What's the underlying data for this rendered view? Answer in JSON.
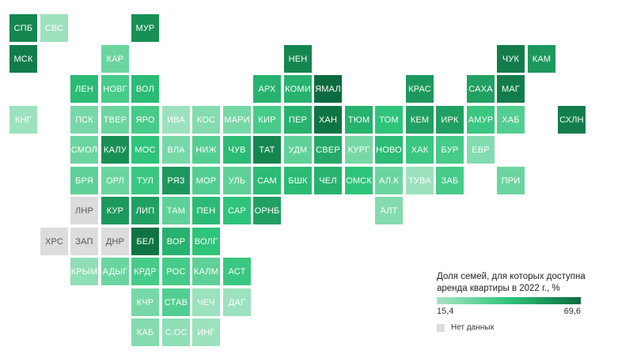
{
  "chart_data": {
    "type": "heatmap",
    "legend": {
      "title": "Доля семей, для которых доступна аренда квартиры в 2022 г., %",
      "min_label": "15,4",
      "max_label": "69,6",
      "nodata_label": "Нет данных",
      "color_min": "#a8e5c5",
      "color_mid": "#2ec47a",
      "color_max": "#0b6b3e",
      "nodata_color": "#dcdcdc"
    },
    "tiles": [
      {
        "label": "СПБ",
        "row": 0,
        "col": 0,
        "level": 0.85
      },
      {
        "label": "СВС",
        "row": 0,
        "col": 1,
        "level": 0.05
      },
      {
        "label": "МУР",
        "row": 0,
        "col": 4,
        "level": 0.8
      },
      {
        "label": "МСК",
        "row": 1,
        "col": 0,
        "level": 0.9
      },
      {
        "label": "КАР",
        "row": 1,
        "col": 3,
        "level": 0.25
      },
      {
        "label": "НЕН",
        "row": 1,
        "col": 9,
        "level": 0.85
      },
      {
        "label": "ЧУК",
        "row": 1,
        "col": 16,
        "level": 0.9
      },
      {
        "label": "КАМ",
        "row": 1,
        "col": 17,
        "level": 0.75
      },
      {
        "label": "ЛЕН",
        "row": 2,
        "col": 2,
        "level": 0.55
      },
      {
        "label": "НОВГ",
        "row": 2,
        "col": 3,
        "level": 0.4
      },
      {
        "label": "ВОЛ",
        "row": 2,
        "col": 4,
        "level": 0.55
      },
      {
        "label": "АРХ",
        "row": 2,
        "col": 8,
        "level": 0.6
      },
      {
        "label": "КОМИ",
        "row": 2,
        "col": 9,
        "level": 0.6
      },
      {
        "label": "ЯМАЛ",
        "row": 2,
        "col": 10,
        "level": 1.0
      },
      {
        "label": "КРАС",
        "row": 2,
        "col": 13,
        "level": 0.75
      },
      {
        "label": "САХА",
        "row": 2,
        "col": 15,
        "level": 0.7
      },
      {
        "label": "МАГ",
        "row": 2,
        "col": 16,
        "level": 0.9
      },
      {
        "label": "КНГ",
        "row": 3,
        "col": 0,
        "level": 0.05
      },
      {
        "label": "ПСК",
        "row": 3,
        "col": 2,
        "level": 0.2
      },
      {
        "label": "ТВЕР",
        "row": 3,
        "col": 3,
        "level": 0.25
      },
      {
        "label": "ЯРО",
        "row": 3,
        "col": 4,
        "level": 0.4
      },
      {
        "label": "ИВА",
        "row": 3,
        "col": 5,
        "level": 0.05
      },
      {
        "label": "КОС",
        "row": 3,
        "col": 6,
        "level": 0.15
      },
      {
        "label": "МАРИ",
        "row": 3,
        "col": 7,
        "level": 0.2
      },
      {
        "label": "КИР",
        "row": 3,
        "col": 8,
        "level": 0.4
      },
      {
        "label": "ПЕР",
        "row": 3,
        "col": 9,
        "level": 0.6
      },
      {
        "label": "ХАН",
        "row": 3,
        "col": 10,
        "level": 0.95
      },
      {
        "label": "ТЮМ",
        "row": 3,
        "col": 11,
        "level": 0.6
      },
      {
        "label": "ТОМ",
        "row": 3,
        "col": 12,
        "level": 0.5
      },
      {
        "label": "КЕМ",
        "row": 3,
        "col": 13,
        "level": 0.7
      },
      {
        "label": "ИРК",
        "row": 3,
        "col": 14,
        "level": 0.7
      },
      {
        "label": "АМУР",
        "row": 3,
        "col": 15,
        "level": 0.45
      },
      {
        "label": "ХАБ",
        "row": 3,
        "col": 16,
        "level": 0.35
      },
      {
        "label": "СХЛН",
        "row": 3,
        "col": 18,
        "level": 0.9
      },
      {
        "label": "СМОЛ",
        "row": 4,
        "col": 2,
        "level": 0.25
      },
      {
        "label": "КАЛУ",
        "row": 4,
        "col": 3,
        "level": 0.8
      },
      {
        "label": "МОС",
        "row": 4,
        "col": 4,
        "level": 0.5
      },
      {
        "label": "ВЛА",
        "row": 4,
        "col": 5,
        "level": 0.2
      },
      {
        "label": "НИЖ",
        "row": 4,
        "col": 6,
        "level": 0.35
      },
      {
        "label": "ЧУВ",
        "row": 4,
        "col": 7,
        "level": 0.55
      },
      {
        "label": "ТАТ",
        "row": 4,
        "col": 8,
        "level": 0.85
      },
      {
        "label": "УДМ",
        "row": 4,
        "col": 9,
        "level": 0.3
      },
      {
        "label": "СВЕР",
        "row": 4,
        "col": 10,
        "level": 0.65
      },
      {
        "label": "КУРГ",
        "row": 4,
        "col": 11,
        "level": 0.2
      },
      {
        "label": "НОВО",
        "row": 4,
        "col": 12,
        "level": 0.55
      },
      {
        "label": "ХАК",
        "row": 4,
        "col": 13,
        "level": 0.45
      },
      {
        "label": "БУР",
        "row": 4,
        "col": 14,
        "level": 0.4
      },
      {
        "label": "ЕВР",
        "row": 4,
        "col": 15,
        "level": 0.15
      },
      {
        "label": "БРЯ",
        "row": 5,
        "col": 2,
        "level": 0.3
      },
      {
        "label": "ОРЛ",
        "row": 5,
        "col": 3,
        "level": 0.25
      },
      {
        "label": "ТУЛ",
        "row": 5,
        "col": 4,
        "level": 0.45
      },
      {
        "label": "РЯЗ",
        "row": 5,
        "col": 5,
        "level": 0.75
      },
      {
        "label": "МОР",
        "row": 5,
        "col": 6,
        "level": 0.35
      },
      {
        "label": "УЛЬ",
        "row": 5,
        "col": 7,
        "level": 0.3
      },
      {
        "label": "САМ",
        "row": 5,
        "col": 8,
        "level": 0.55
      },
      {
        "label": "БШК",
        "row": 5,
        "col": 9,
        "level": 0.55
      },
      {
        "label": "ЧЕЛ",
        "row": 5,
        "col": 10,
        "level": 0.6
      },
      {
        "label": "ОМСК",
        "row": 5,
        "col": 11,
        "level": 0.5
      },
      {
        "label": "АЛ.К",
        "row": 5,
        "col": 12,
        "level": 0.25
      },
      {
        "label": "ТУВА",
        "row": 5,
        "col": 13,
        "level": 0.05
      },
      {
        "label": "ЗАБ",
        "row": 5,
        "col": 14,
        "level": 0.4
      },
      {
        "label": "ПРИ",
        "row": 5,
        "col": 16,
        "level": 0.25
      },
      {
        "label": "ЛНР",
        "row": 6,
        "col": 2,
        "nodata": true
      },
      {
        "label": "КУР",
        "row": 6,
        "col": 3,
        "level": 0.75
      },
      {
        "label": "ЛИП",
        "row": 6,
        "col": 4,
        "level": 0.7
      },
      {
        "label": "ТАМ",
        "row": 6,
        "col": 5,
        "level": 0.3
      },
      {
        "label": "ПЕН",
        "row": 6,
        "col": 6,
        "level": 0.55
      },
      {
        "label": "САР",
        "row": 6,
        "col": 7,
        "level": 0.5
      },
      {
        "label": "ОРНБ",
        "row": 6,
        "col": 8,
        "level": 0.7
      },
      {
        "label": "АЛТ",
        "row": 6,
        "col": 12,
        "level": 0.15
      },
      {
        "label": "ХРС",
        "row": 7,
        "col": 1,
        "nodata": true
      },
      {
        "label": "ЗАП",
        "row": 7,
        "col": 2,
        "nodata": true
      },
      {
        "label": "ДНР",
        "row": 7,
        "col": 3,
        "nodata": true
      },
      {
        "label": "БЕЛ",
        "row": 7,
        "col": 4,
        "level": 0.95
      },
      {
        "label": "ВОР",
        "row": 7,
        "col": 5,
        "level": 0.6
      },
      {
        "label": "ВОЛГ",
        "row": 7,
        "col": 6,
        "level": 0.5
      },
      {
        "label": "КРЫМ",
        "row": 8,
        "col": 2,
        "level": 0.1
      },
      {
        "label": "АДЫГ",
        "row": 8,
        "col": 3,
        "level": 0.25
      },
      {
        "label": "КРДР",
        "row": 8,
        "col": 4,
        "level": 0.4
      },
      {
        "label": "РОС",
        "row": 8,
        "col": 5,
        "level": 0.4
      },
      {
        "label": "КАЛМ",
        "row": 8,
        "col": 6,
        "level": 0.3
      },
      {
        "label": "АСТ",
        "row": 8,
        "col": 7,
        "level": 0.45
      },
      {
        "label": "КЧР",
        "row": 9,
        "col": 4,
        "level": 0.2
      },
      {
        "label": "СТАВ",
        "row": 9,
        "col": 5,
        "level": 0.35
      },
      {
        "label": "ЧЕЧ",
        "row": 9,
        "col": 6,
        "level": 0.05
      },
      {
        "label": "ДАГ",
        "row": 9,
        "col": 7,
        "level": 0.05
      },
      {
        "label": "КАБ",
        "row": 10,
        "col": 4,
        "level": 0.15
      },
      {
        "label": "С.ОС",
        "row": 10,
        "col": 5,
        "level": 0.1
      },
      {
        "label": "ИНГ",
        "row": 10,
        "col": 6,
        "level": 0.05
      }
    ]
  }
}
